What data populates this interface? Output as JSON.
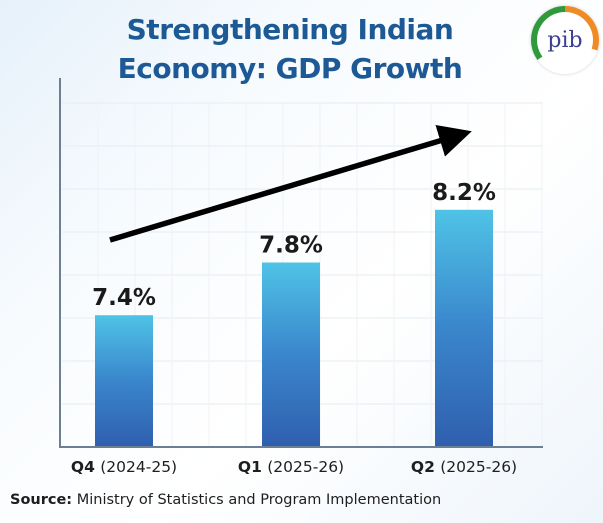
{
  "chart_data": {
    "type": "bar",
    "title": "Strengthening Indian Economy: GDP Growth",
    "title_lines": [
      "Strengthening Indian",
      "Economy: GDP Growth"
    ],
    "categories": [
      {
        "quarter": "Q4",
        "year": "(2024-25)"
      },
      {
        "quarter": "Q1",
        "year": "(2025-26)"
      },
      {
        "quarter": "Q2",
        "year": "(2025-26)"
      }
    ],
    "values": [
      7.4,
      7.8,
      8.2
    ],
    "data_labels": [
      "7.4%",
      "7.8%",
      "8.2%"
    ],
    "unit": "%",
    "ylim": [
      6.4,
      9.2
    ],
    "grid": true,
    "trend_arrow": "upward",
    "colors": {
      "title": "#1d5a95",
      "bar_top": "#4fc3e6",
      "bar_bottom": "#2f5fae",
      "arrow": "#000000"
    }
  },
  "source": {
    "label": "Source:",
    "text": " Ministry of Statistics and Program Implementation"
  },
  "logo": {
    "text": "pib"
  }
}
